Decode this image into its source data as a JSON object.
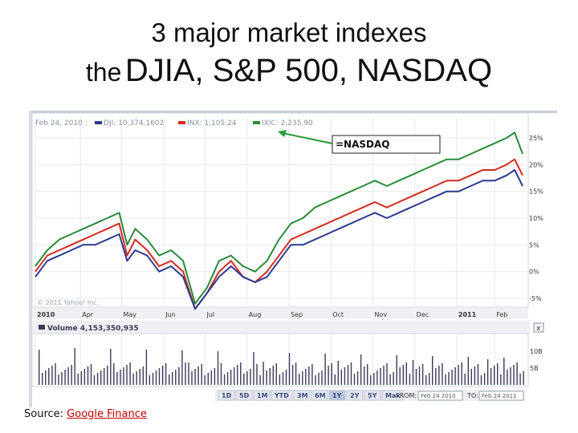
{
  "slide": {
    "title_line1": "3 major market indexes",
    "title_line2_prefix": "the",
    "title_line2_main": "DJIA, S&P 500, NASDAQ",
    "source_label": "Source:",
    "source_link": "Google Finance"
  },
  "chart_header": {
    "date": "Feb 24, 2010 :",
    "dji": "DJI: 10,374.1602",
    "spx": "INX: 1,105.24",
    "ixic": "IXIC: 2,235.90"
  },
  "annotation": {
    "label": "=NASDAQ",
    "color": "#2a9a3a"
  },
  "watermark": "© 2011 Yahoo! Inc.",
  "volume_label": "Volume 4,153,350,935",
  "volume_ticks": [
    "10B",
    "5B"
  ],
  "range_buttons": [
    "1D",
    "5D",
    "1M",
    "YTD",
    "3M",
    "6M",
    "1Y",
    "2Y",
    "5Y",
    "Max"
  ],
  "range_selected": "1Y",
  "from_label": "FROM:",
  "from_value": "Feb 24 2010",
  "to_label": "TO:",
  "to_value": "Feb 24 2011",
  "colors": {
    "dji": "#2b3a8f",
    "spx": "#d42a1e",
    "ixic": "#2a8a3a",
    "volume": "#3a3a5a"
  },
  "chart_data": {
    "type": "line",
    "title": "",
    "xlabel": "",
    "ylabel": "",
    "y_unit": "%",
    "ylim": [
      -5,
      25
    ],
    "y_ticks": [
      25,
      20,
      15,
      10,
      5,
      0,
      -5
    ],
    "x_ticks": [
      "2010",
      "Apr",
      "May",
      "Jun",
      "Jul",
      "Aug",
      "Sep",
      "Oct",
      "Nov",
      "Dec",
      "2011",
      "Feb"
    ],
    "x_tick_pos": [
      0,
      1.13,
      2.16,
      3.22,
      4.25,
      5.3,
      6.35,
      7.4,
      8.45,
      9.5,
      10.55,
      11.5
    ],
    "x_max": 12.3,
    "grid": true,
    "legend": "top-left",
    "series": [
      {
        "name": "IXIC",
        "x": [
          0,
          0.3,
          0.6,
          0.9,
          1.2,
          1.5,
          1.8,
          2.1,
          2.3,
          2.5,
          2.8,
          3.1,
          3.4,
          3.7,
          4.0,
          4.3,
          4.6,
          4.9,
          5.2,
          5.5,
          5.8,
          6.1,
          6.4,
          6.7,
          7.0,
          7.3,
          7.6,
          7.9,
          8.2,
          8.5,
          8.8,
          9.1,
          9.4,
          9.7,
          10.0,
          10.3,
          10.6,
          10.9,
          11.2,
          11.5,
          11.8,
          12.0,
          12.2
        ],
        "y": [
          1,
          4,
          6,
          7,
          8,
          9,
          10,
          11,
          5,
          8,
          6,
          3,
          4,
          2,
          -6,
          -3,
          2,
          3,
          1,
          0,
          2,
          6,
          9,
          10,
          12,
          13,
          14,
          15,
          16,
          17,
          16,
          17,
          18,
          19,
          20,
          21,
          21,
          22,
          23,
          24,
          25,
          26,
          22
        ]
      },
      {
        "name": "INX",
        "x": [
          0,
          0.3,
          0.6,
          0.9,
          1.2,
          1.5,
          1.8,
          2.1,
          2.3,
          2.5,
          2.8,
          3.1,
          3.4,
          3.7,
          4.0,
          4.3,
          4.6,
          4.9,
          5.2,
          5.5,
          5.8,
          6.1,
          6.4,
          6.7,
          7.0,
          7.3,
          7.6,
          7.9,
          8.2,
          8.5,
          8.8,
          9.1,
          9.4,
          9.7,
          10.0,
          10.3,
          10.6,
          10.9,
          11.2,
          11.5,
          11.8,
          12.0,
          12.2
        ],
        "y": [
          0,
          3,
          4,
          5,
          6,
          7,
          8,
          9,
          3,
          6,
          4,
          1,
          2,
          0,
          -7,
          -4,
          0,
          2,
          -1,
          -2,
          0,
          3,
          6,
          7,
          8,
          9,
          10,
          11,
          12,
          13,
          12,
          13,
          14,
          15,
          16,
          17,
          17,
          18,
          19,
          19,
          20,
          21,
          18
        ]
      },
      {
        "name": "DJI",
        "x": [
          0,
          0.3,
          0.6,
          0.9,
          1.2,
          1.5,
          1.8,
          2.1,
          2.3,
          2.5,
          2.8,
          3.1,
          3.4,
          3.7,
          4.0,
          4.3,
          4.6,
          4.9,
          5.2,
          5.5,
          5.8,
          6.1,
          6.4,
          6.7,
          7.0,
          7.3,
          7.6,
          7.9,
          8.2,
          8.5,
          8.8,
          9.1,
          9.4,
          9.7,
          10.0,
          10.3,
          10.6,
          10.9,
          11.2,
          11.5,
          11.8,
          12.0,
          12.2
        ],
        "y": [
          -1,
          2,
          3,
          4,
          5,
          5,
          6,
          7,
          2,
          4,
          3,
          0,
          1,
          -1,
          -7,
          -4,
          -1,
          1,
          -1,
          -2,
          -1,
          2,
          5,
          5,
          6,
          7,
          8,
          9,
          10,
          11,
          10,
          11,
          12,
          13,
          14,
          15,
          15,
          16,
          17,
          17,
          18,
          19,
          16
        ]
      }
    ]
  }
}
